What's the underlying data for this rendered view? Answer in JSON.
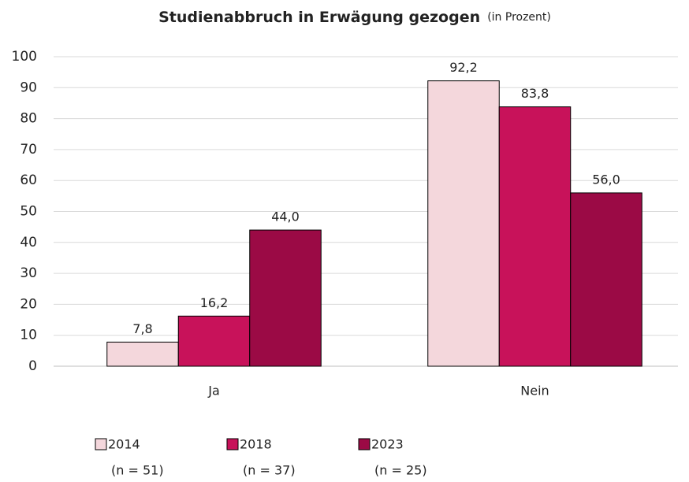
{
  "chart_data": {
    "type": "bar",
    "title": "Studienabbruch in Erwägung gezogen",
    "subtitle": "(in Prozent)",
    "categories": [
      "Ja",
      "Nein"
    ],
    "series": [
      {
        "name": "2014",
        "sample": "(n = 51)",
        "color": "#f4d7dc",
        "values": [
          7.8,
          92.2
        ],
        "value_labels": [
          "7,8",
          "92,2"
        ]
      },
      {
        "name": "2018",
        "sample": "(n = 37)",
        "color": "#c8125a",
        "values": [
          16.2,
          83.8
        ],
        "value_labels": [
          "16,2",
          "83,8"
        ]
      },
      {
        "name": "2023",
        "sample": "(n = 25)",
        "color": "#9b0a45",
        "values": [
          44.0,
          56.0
        ],
        "value_labels": [
          "44,0",
          "56,0"
        ]
      }
    ],
    "ylim": [
      0,
      100
    ],
    "yticks": [
      0,
      10,
      20,
      30,
      40,
      50,
      60,
      70,
      80,
      90,
      100
    ],
    "grid": true,
    "legend": "bottom"
  }
}
